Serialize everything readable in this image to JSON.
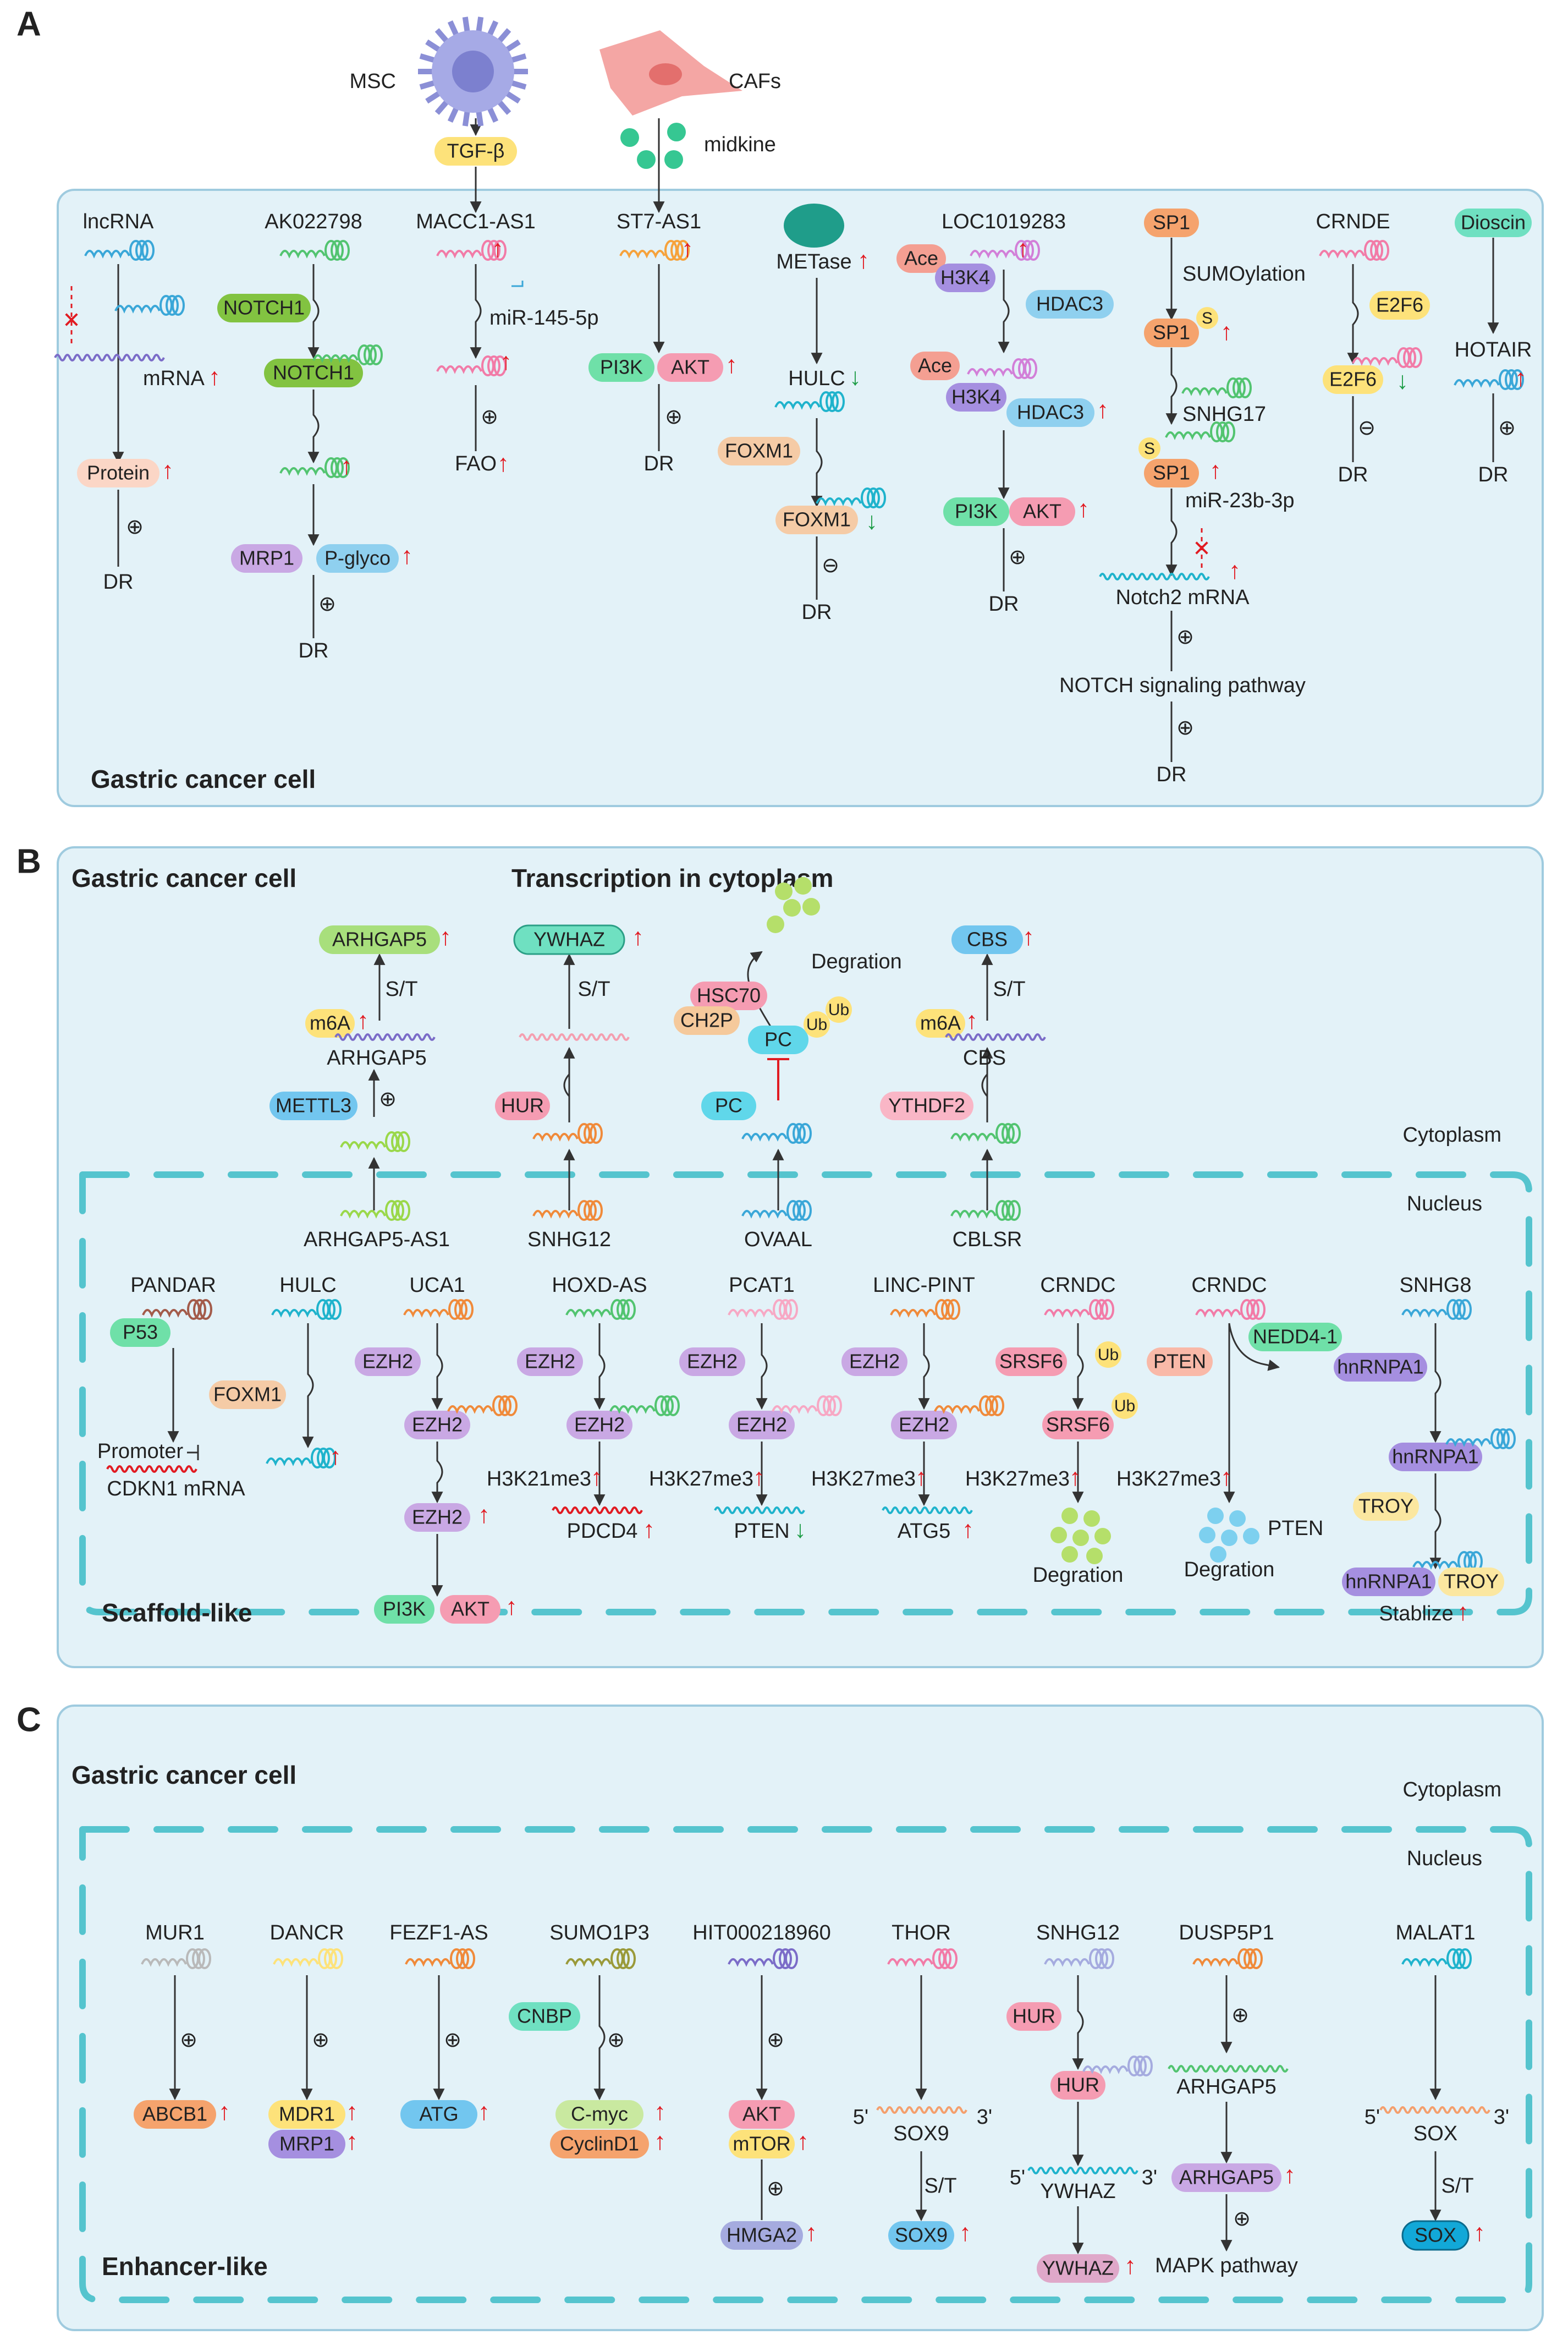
{
  "panels": [
    {
      "letter": "A",
      "title": "Gastric cancer cell"
    },
    {
      "letter": "B",
      "title": "Gastric cancer cell",
      "subtitle": "Transcription in cytoplasm",
      "mechanism": "Scaffold-like"
    },
    {
      "letter": "C",
      "title": "Gastric cancer cell",
      "mechanism": "Enhancer-like"
    }
  ],
  "compartments": {
    "cytoplasm": "Cytoplasm",
    "nucleus": "Nucleus"
  },
  "symbols": {
    "plus": "⊕",
    "minus": "⊖",
    "up": "↑",
    "down": "↓",
    "x": "✕",
    "st": "S/T"
  },
  "colors": {
    "panel_fill": "#e3f2f8",
    "panel_stroke": "#9fcbdf",
    "nucleus_dash": "#55c4ce",
    "up_arrow": "#e11b22",
    "down_arrow": "#1f9d48"
  },
  "panelA": {
    "top": {
      "msc": "MSC",
      "cafs": "CAFs",
      "tgfb": "TGF-β",
      "midkine": "midkine"
    },
    "c1": {
      "lncrna": "lncRNA",
      "mrna": "mRNA",
      "protein": "Protein",
      "dr": "DR"
    },
    "c2": {
      "name": "AK022798",
      "notch1": "NOTCH1",
      "notch1b": "NOTCH1",
      "mrp1": "MRP1",
      "pglyco": "P-glyco",
      "dr": "DR"
    },
    "c3": {
      "name": "MACC1-AS1",
      "mir": "miR-145-5p",
      "fao": "FAO",
      "dr": "DR"
    },
    "c4": {
      "name": "ST7-AS1",
      "pi3k": "PI3K",
      "akt": "AKT",
      "dr": "DR"
    },
    "c5": {
      "metase": "METase",
      "hulc": "HULC",
      "foxm1": "FOXM1",
      "foxm1b": "FOXM1",
      "dr": "DR"
    },
    "c6": {
      "name": "LOC1019283",
      "ace": "Ace",
      "h3k4": "H3K4",
      "hdac3": "HDAC3",
      "ace2": "Ace",
      "h3k4b": "H3K4",
      "hdac3b": "HDAC3",
      "pi3k": "PI3K",
      "akt": "AKT",
      "dr": "DR"
    },
    "c7": {
      "sp1": "SP1",
      "sumo": "SUMOylation",
      "sp1b": "SP1",
      "s": "S",
      "snhg17": "SNHG17",
      "s2": "S",
      "sp1c": "SP1",
      "mir": "miR-23b-3p",
      "notch2": "Notch2 mRNA",
      "pathway": "NOTCH signaling pathway",
      "dr": "DR"
    },
    "c8": {
      "name": "CRNDE",
      "e2f6": "E2F6",
      "e2f6b": "E2F6",
      "dr": "DR"
    },
    "c9": {
      "name": "Dioscin",
      "hotair": "HOTAIR",
      "dr": "DR"
    }
  },
  "panelB": {
    "cyto": {
      "arhgap5": "ARHGAP5",
      "m6a": "m6A",
      "arhgap5_rna": "ARHGAP5",
      "mettl3": "METTL3",
      "arhgap5_as1": "ARHGAP5-AS1",
      "ywhaz": "YWHAZ",
      "hur": "HUR",
      "snhg12": "SNHG12",
      "degration": "Degration",
      "hsc70": "HSC70",
      "ch2p": "CH2P",
      "ub1": "Ub",
      "ub2": "Ub",
      "pc": "PC",
      "pc2": "PC",
      "ovaal": "OVAAL",
      "cbs": "CBS",
      "m6a2": "m6A",
      "cbs_rna": "CBS",
      "ythdf2": "YTHDF2",
      "cblsr": "CBLSR"
    },
    "nuc": {
      "pandar": "PANDAR",
      "p53": "P53",
      "promoter": "Promoter",
      "cdkn1": "CDKN1 mRNA",
      "hulc": "HULC",
      "foxm1": "FOXM1",
      "uca1": "UCA1",
      "ezh2a": "EZH2",
      "ezh2b": "EZH2",
      "ezh2c": "EZH2",
      "pi3k": "PI3K",
      "akt": "AKT",
      "hoxd": "HOXD-AS",
      "ezh2d": "EZH2",
      "ezh2e": "EZH2",
      "h3k21": "H3K21me3",
      "pdcd4": "PDCD4",
      "pcat1": "PCAT1",
      "ezh2f": "EZH2",
      "ezh2g": "EZH2",
      "h3k27a": "H3K27me3",
      "pten": "PTEN",
      "lincpint": "LINC-PINT",
      "ezh2h": "EZH2",
      "ezh2i": "EZH2",
      "h3k27b": "H3K27me3",
      "atg5": "ATG5",
      "crndc1": "CRNDC",
      "srsf6": "SRSF6",
      "ub3": "Ub",
      "srsf6b": "SRSF6",
      "ub4": "Ub",
      "h3k27c": "H3K27me3",
      "degr1": "Degration",
      "crndc2": "CRNDC",
      "pten2": "PTEN",
      "nedd4": "NEDD4-1",
      "h3k27d": "H3K27me3",
      "pten3": "PTEN",
      "degr2": "Degration",
      "snhg8": "SNHG8",
      "hnrnpa1": "hnRNPA1",
      "hnrnpa1b": "hnRNPA1",
      "troy": "TROY",
      "hnrnpa1c": "hnRNPA1",
      "troy2": "TROY",
      "stablize": "Stablize"
    }
  },
  "panelC": {
    "mur1": "MUR1",
    "abcb1": "ABCB1",
    "dancr": "DANCR",
    "mdr1": "MDR1",
    "mrp1": "MRP1",
    "fezf1": "FEZF1-AS",
    "atg": "ATG",
    "sumo1p3": "SUMO1P3",
    "cnbp": "CNBP",
    "cmyc": "C-myc",
    "cyclind1": "CyclinD1",
    "hit": "HIT000218960",
    "akt": "AKT",
    "mtor": "mTOR",
    "hmga2": "HMGA2",
    "thor": "THOR",
    "p5": "5'",
    "p3": "3'",
    "sox9rna": "SOX9",
    "sox9": "SOX9",
    "snhg12": "SNHG12",
    "hur": "HUR",
    "hur2": "HUR",
    "p5b": "5'",
    "p3b": "3'",
    "ywhaz_rna": "YWHAZ",
    "ywhaz": "YWHAZ",
    "dusp": "DUSP5P1",
    "arhgap5_rna": "ARHGAP5",
    "arhgap5": "ARHGAP5",
    "mapk": "MAPK pathway",
    "malat1": "MALAT1",
    "p5c": "5'",
    "p3c": "3'",
    "sox_rna": "SOX",
    "sox": "SOX"
  }
}
